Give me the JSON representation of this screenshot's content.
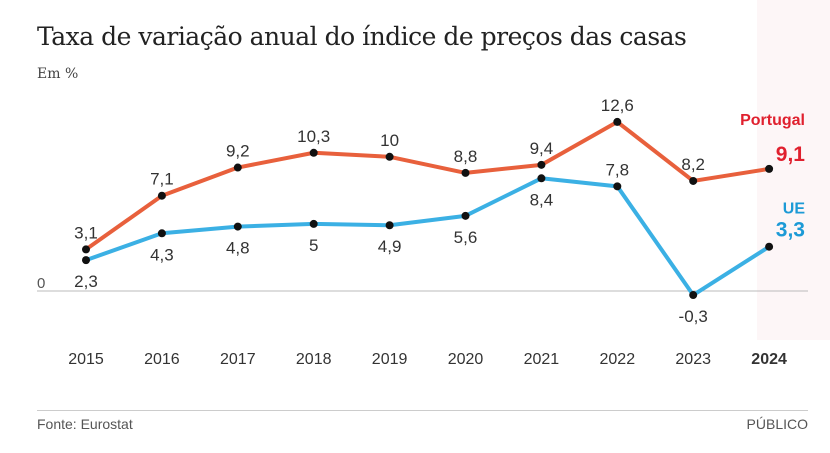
{
  "chart_data": {
    "type": "line",
    "title": "Taxa de variação anual do índice de preços das casas",
    "subtitle": "Em %",
    "x": [
      "2015",
      "2016",
      "2017",
      "2018",
      "2019",
      "2020",
      "2021",
      "2022",
      "2023",
      "2024"
    ],
    "series": [
      {
        "name": "Portugal",
        "color": "#e8603c",
        "label_color": "#e0202e",
        "values": [
          3.1,
          7.1,
          9.2,
          10.3,
          10,
          8.8,
          9.4,
          12.6,
          8.2,
          9.1
        ],
        "labels": [
          "3,1",
          "7,1",
          "9,2",
          "10,3",
          "10",
          "8,8",
          "9,4",
          "12,6",
          "8,2",
          "9,1"
        ]
      },
      {
        "name": "UE",
        "color": "#3bb0e4",
        "label_color": "#1c9ad6",
        "values": [
          2.3,
          4.3,
          4.8,
          5,
          4.9,
          5.6,
          8.4,
          7.8,
          -0.3,
          3.3
        ],
        "labels": [
          "2,3",
          "4,3",
          "4,8",
          "5",
          "4,9",
          "5,6",
          "8,4",
          "7,8",
          "-0,3",
          "3,3"
        ]
      }
    ],
    "y_zero_label": "0",
    "ylim": [
      -2,
      14
    ],
    "grid": false,
    "legend": "right, inline labels",
    "source": "Fonte: Eurostat",
    "brand": "PÚBLICO"
  }
}
